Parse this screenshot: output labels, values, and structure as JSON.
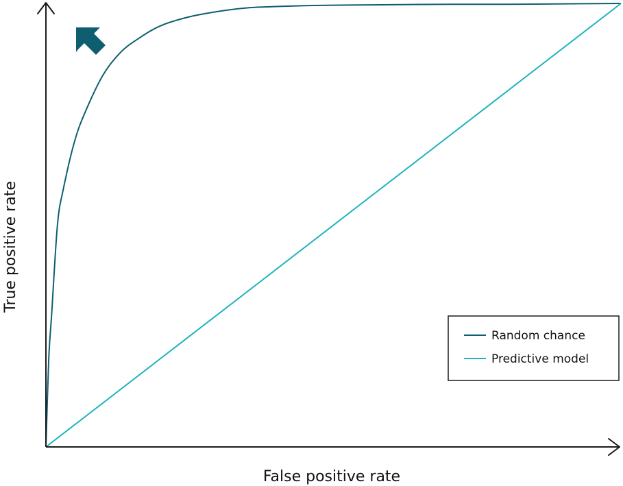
{
  "chart_data": {
    "type": "line",
    "title": "",
    "xlabel": "False positive rate",
    "ylabel": "True positive rate",
    "xlim": [
      0,
      1
    ],
    "ylim": [
      0,
      1
    ],
    "grid": false,
    "legend_position": "bottom-right",
    "series": [
      {
        "name": "Random chance",
        "color": "#0e5e6f",
        "x": [
          0,
          0.005,
          0.01,
          0.02,
          0.03,
          0.05,
          0.07,
          0.1,
          0.13,
          0.16,
          0.2,
          0.25,
          0.3,
          0.35,
          0.4,
          0.45,
          0.5,
          0.6,
          0.7,
          0.8,
          0.9,
          1.0
        ],
        "y": [
          0,
          0.2,
          0.3,
          0.5,
          0.58,
          0.69,
          0.76,
          0.84,
          0.89,
          0.92,
          0.95,
          0.97,
          0.982,
          0.99,
          0.993,
          0.995,
          0.996,
          0.997,
          0.998,
          0.998,
          0.999,
          1.0
        ]
      },
      {
        "name": "Predictive model",
        "color": "#1cb3bd",
        "x": [
          0,
          1
        ],
        "y": [
          0,
          1
        ]
      }
    ],
    "annotation": {
      "icon": "arrow-up-left-icon",
      "color": "#0e5e6f"
    }
  }
}
